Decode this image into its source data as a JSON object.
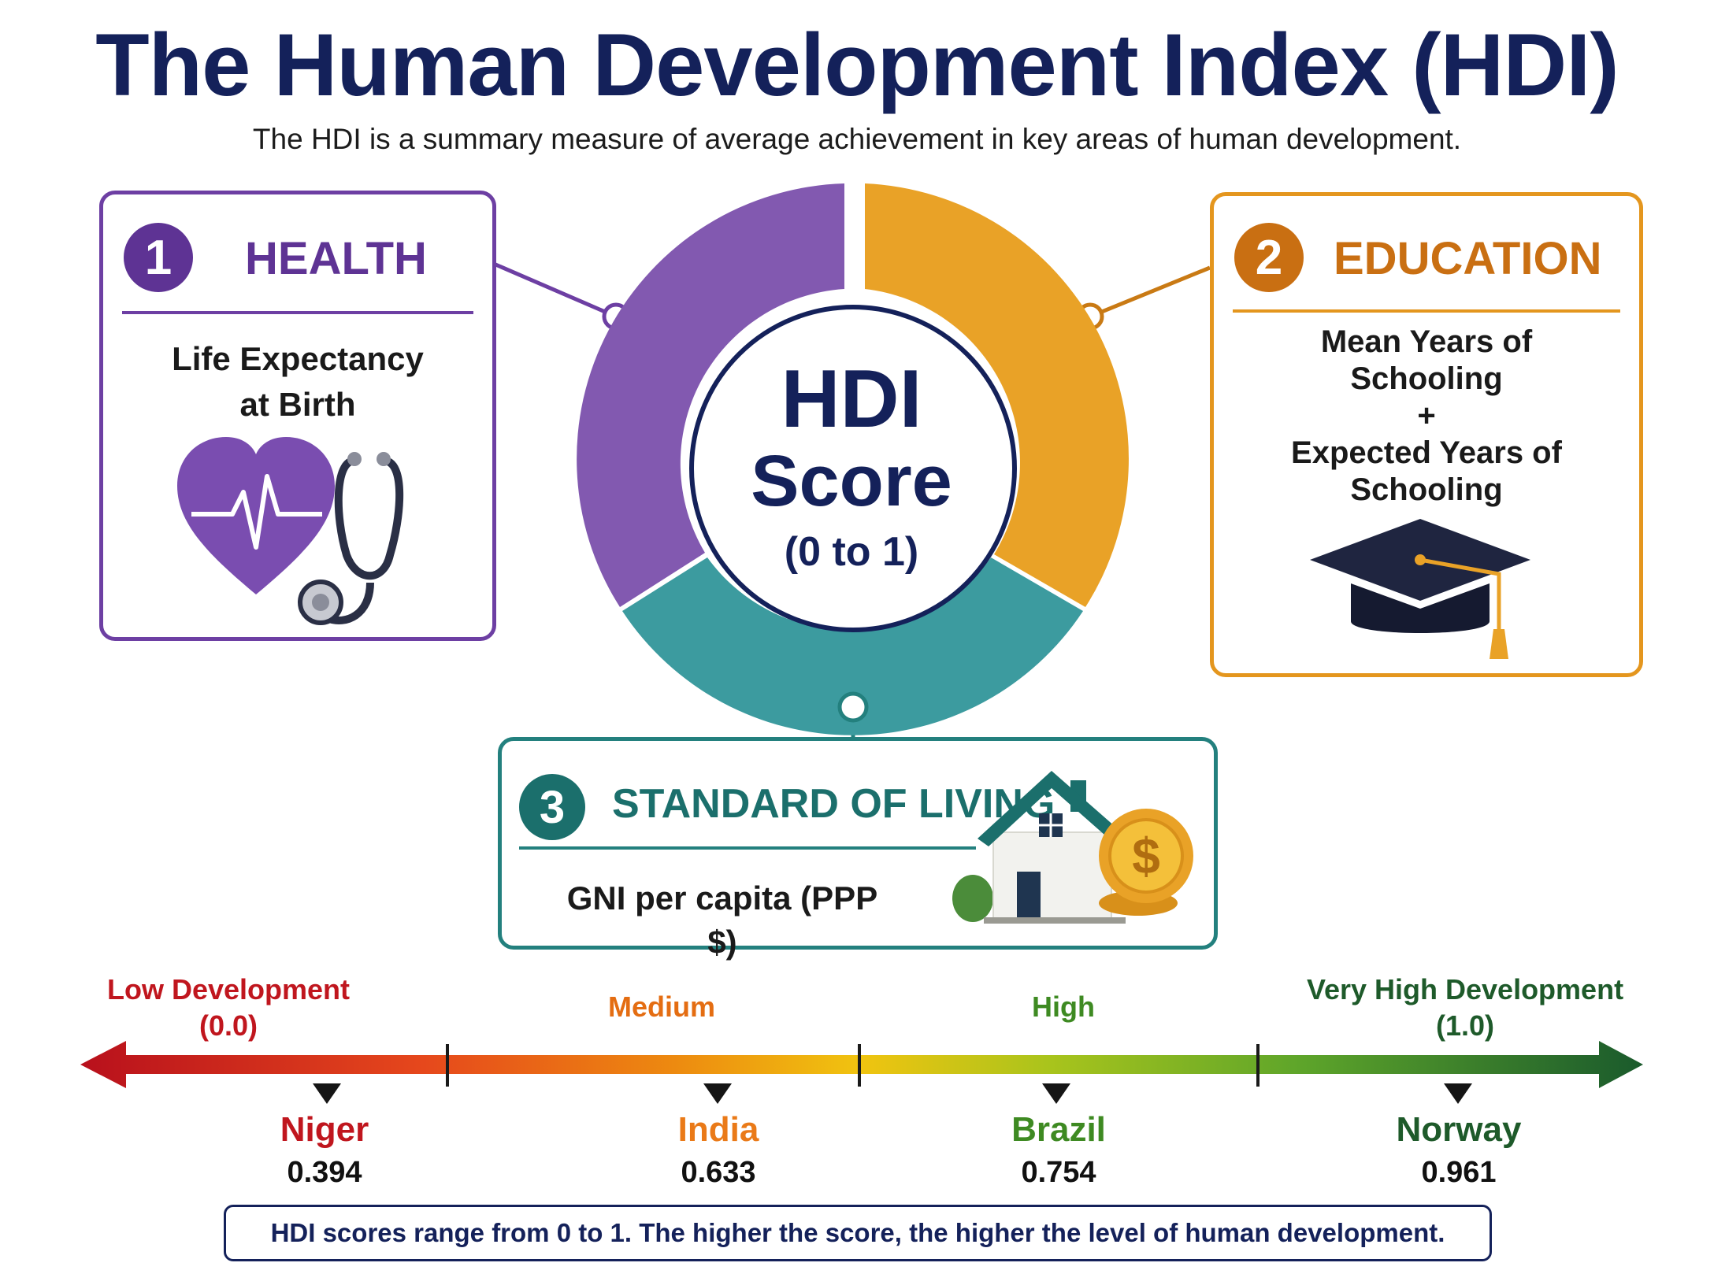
{
  "title": "The Human Development Index (HDI)",
  "subtitle": "The HDI is a summary measure of average achievement in key areas of human development.",
  "center": {
    "line1": "HDI",
    "line2": "Score",
    "line3": "(0 to 1)"
  },
  "colors": {
    "health": "#6d3fa3",
    "education": "#e4961e",
    "living": "#23807e",
    "navy": "#14215a"
  },
  "dimensions": [
    {
      "number": "1",
      "title": "HEALTH",
      "text_lines": [
        "Life Expectancy",
        "at Birth"
      ],
      "icon": "heart-stethoscope-icon"
    },
    {
      "number": "2",
      "title": "EDUCATION",
      "text_lines": [
        "Mean Years of",
        "Schooling",
        "+",
        "Expected Years of",
        "Schooling"
      ],
      "icon": "graduation-cap-icon"
    },
    {
      "number": "3",
      "title": "STANDARD OF LIVING",
      "text_lines": [
        "GNI per capita (PPP $)"
      ],
      "icon": "house-coins-icon"
    }
  ],
  "scale": {
    "levels": [
      {
        "label_lines": [
          "Low Development",
          "(0.0)"
        ],
        "color": "#c0161e"
      },
      {
        "label_lines": [
          "Medium"
        ],
        "color": "#e46d12"
      },
      {
        "label_lines": [
          "High"
        ],
        "color": "#3e8a22"
      },
      {
        "label_lines": [
          "Very High Development",
          "(1.0)"
        ],
        "color": "#1e5a2a"
      }
    ],
    "countries": [
      {
        "name": "Niger",
        "score": "0.394",
        "color": "#c0161e"
      },
      {
        "name": "India",
        "score": "0.633",
        "color": "#ea7a18"
      },
      {
        "name": "Brazil",
        "score": "0.754",
        "color": "#3e8a22"
      },
      {
        "name": "Norway",
        "score": "0.961",
        "color": "#1e5a2a"
      }
    ]
  },
  "note": "HDI scores range from 0 to 1. The higher the score, the higher the level of human development."
}
